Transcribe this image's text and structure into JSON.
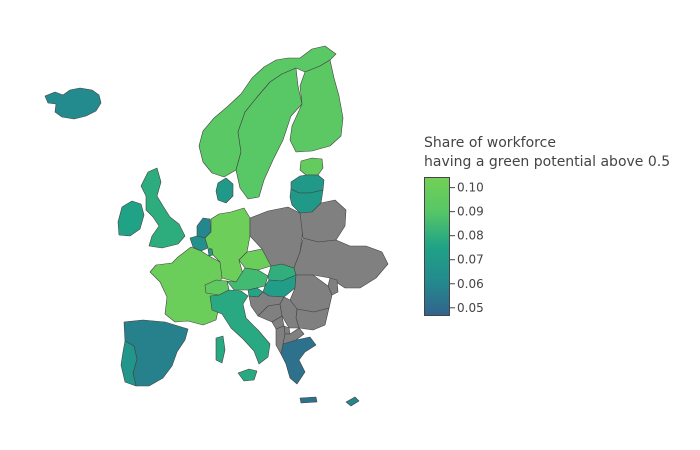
{
  "legend": {
    "title_line1": "Share of workforce",
    "title_line2": "having a green potential above 0.5",
    "min": 0.047,
    "max": 0.104,
    "ticks": [
      {
        "value": 0.1,
        "label": "0.10"
      },
      {
        "value": 0.09,
        "label": "0.09"
      },
      {
        "value": 0.08,
        "label": "0.08"
      },
      {
        "value": 0.07,
        "label": "0.07"
      },
      {
        "value": 0.06,
        "label": "0.06"
      },
      {
        "value": 0.05,
        "label": "0.05"
      }
    ],
    "colorscale": [
      "#33638d",
      "#238a8d",
      "#20a386",
      "#55c667",
      "#73d055"
    ]
  },
  "chart_data": {
    "type": "choropleth",
    "no_data_color": "#808080",
    "countries": [
      {
        "name": "Iceland",
        "value": 0.062
      },
      {
        "name": "Norway",
        "value": 0.092
      },
      {
        "name": "Sweden",
        "value": 0.091
      },
      {
        "name": "Finland",
        "value": 0.093
      },
      {
        "name": "Estonia",
        "value": 0.097
      },
      {
        "name": "Latvia",
        "value": 0.07
      },
      {
        "name": "Lithuania",
        "value": 0.07
      },
      {
        "name": "Denmark",
        "value": 0.07
      },
      {
        "name": "Ireland",
        "value": 0.075
      },
      {
        "name": "United Kingdom",
        "value": 0.079
      },
      {
        "name": "Netherlands",
        "value": 0.06
      },
      {
        "name": "Belgium",
        "value": 0.065
      },
      {
        "name": "Luxembourg",
        "value": 0.07
      },
      {
        "name": "France",
        "value": 0.1
      },
      {
        "name": "Germany",
        "value": 0.101
      },
      {
        "name": "Czechia",
        "value": 0.1
      },
      {
        "name": "Austria",
        "value": 0.085
      },
      {
        "name": "Slovakia",
        "value": 0.08
      },
      {
        "name": "Hungary",
        "value": 0.072
      },
      {
        "name": "Switzerland",
        "value": 0.095
      },
      {
        "name": "Slovenia",
        "value": 0.076
      },
      {
        "name": "Italy",
        "value": 0.078
      },
      {
        "name": "Spain",
        "value": 0.058
      },
      {
        "name": "Portugal",
        "value": 0.068
      },
      {
        "name": "Greece",
        "value": 0.052
      },
      {
        "name": "Cyprus",
        "value": 0.06
      },
      {
        "name": "Poland",
        "value": null
      },
      {
        "name": "Belarus",
        "value": null
      },
      {
        "name": "Ukraine",
        "value": null
      },
      {
        "name": "Romania",
        "value": null
      },
      {
        "name": "Bulgaria",
        "value": null
      },
      {
        "name": "Moldova",
        "value": null
      },
      {
        "name": "Croatia",
        "value": null
      },
      {
        "name": "Bosnia and Herzegovina",
        "value": null
      },
      {
        "name": "Serbia",
        "value": null
      },
      {
        "name": "Montenegro",
        "value": null
      },
      {
        "name": "Albania",
        "value": null
      },
      {
        "name": "North Macedonia",
        "value": null
      },
      {
        "name": "Kosovo",
        "value": null
      }
    ]
  }
}
